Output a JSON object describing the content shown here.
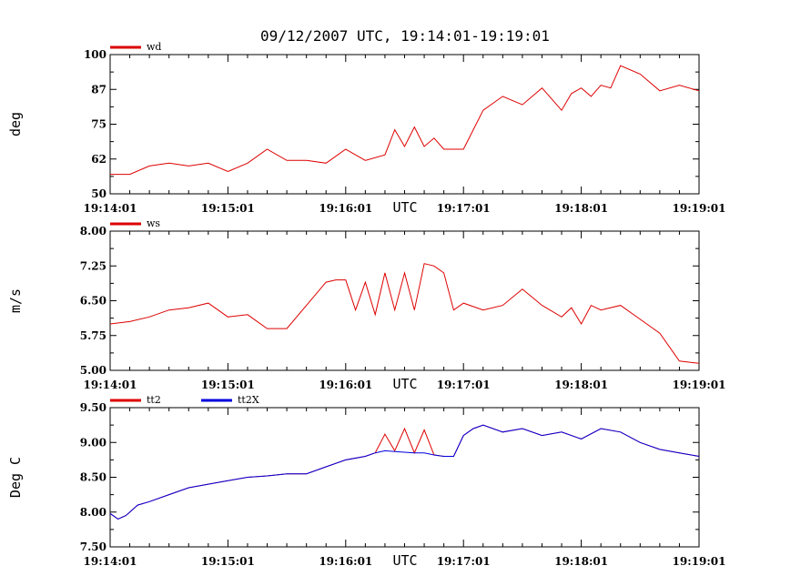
{
  "title": "09/12/2007  UTC, 19:14:01-19:19:01",
  "colors": {
    "red": "#dd0000",
    "blue": "#0000dd",
    "frame": "#000000"
  },
  "chart_data": [
    {
      "type": "line",
      "ylabel": "deg",
      "xlabel": "UTC",
      "ylim": [
        50,
        100
      ],
      "yticks": [
        "100",
        "87",
        "75",
        "62",
        "50"
      ],
      "ytick_values": [
        100,
        87.5,
        75,
        62.5,
        50
      ],
      "x_tick_labels": [
        "19:14:01",
        "19:15:01",
        "19:16:01",
        "19:17:01",
        "19:18:01",
        "19:19:01"
      ],
      "x": [
        0,
        10,
        20,
        30,
        40,
        50,
        60,
        70,
        80,
        90,
        100,
        110,
        120,
        125,
        130,
        140,
        145,
        150,
        155,
        160,
        165,
        170,
        180,
        190,
        200,
        210,
        220,
        230,
        235,
        240,
        245,
        250,
        255,
        260,
        270,
        280,
        290,
        300
      ],
      "series": [
        {
          "name": "wd",
          "color": "#dd0000",
          "values": [
            57,
            57,
            60,
            61,
            60,
            61,
            58,
            61,
            66,
            62,
            62,
            61,
            66,
            64,
            62,
            64,
            73,
            67,
            74,
            67,
            70,
            66,
            66,
            80,
            85,
            82,
            88,
            80,
            86,
            88,
            85,
            89,
            88,
            96,
            93,
            87,
            89,
            87
          ]
        }
      ]
    },
    {
      "type": "line",
      "ylabel": "m/s",
      "xlabel": "UTC",
      "ylim": [
        5.0,
        8.0
      ],
      "yticks": [
        "8.00",
        "7.25",
        "6.50",
        "5.75",
        "5.00"
      ],
      "ytick_values": [
        8.0,
        7.25,
        6.5,
        5.75,
        5.0
      ],
      "x_tick_labels": [
        "19:14:01",
        "19:15:01",
        "19:16:01",
        "19:17:01",
        "19:18:01",
        "19:19:01"
      ],
      "x": [
        0,
        10,
        20,
        30,
        40,
        50,
        60,
        70,
        80,
        90,
        100,
        110,
        115,
        120,
        125,
        130,
        135,
        140,
        145,
        150,
        155,
        160,
        165,
        170,
        175,
        180,
        190,
        200,
        210,
        220,
        230,
        235,
        240,
        245,
        250,
        260,
        270,
        280,
        290,
        300
      ],
      "series": [
        {
          "name": "ws",
          "color": "#dd0000",
          "values": [
            6.0,
            6.05,
            6.15,
            6.3,
            6.35,
            6.45,
            6.15,
            6.2,
            5.9,
            5.9,
            6.4,
            6.9,
            6.95,
            6.95,
            6.3,
            6.9,
            6.2,
            7.1,
            6.3,
            7.1,
            6.3,
            7.3,
            7.25,
            7.1,
            6.3,
            6.45,
            6.3,
            6.4,
            6.75,
            6.4,
            6.15,
            6.35,
            6.0,
            6.4,
            6.3,
            6.4,
            6.1,
            5.8,
            5.2,
            5.15
          ]
        }
      ]
    },
    {
      "type": "line",
      "ylabel": "Deg C",
      "xlabel": "UTC",
      "ylim": [
        7.5,
        9.5
      ],
      "yticks": [
        "9.50",
        "9.00",
        "8.50",
        "8.00",
        "7.50"
      ],
      "ytick_values": [
        9.5,
        9.0,
        8.5,
        8.0,
        7.5
      ],
      "x_tick_labels": [
        "19:14:01",
        "19:15:01",
        "19:16:01",
        "19:17:01",
        "19:18:01",
        "19:19:01"
      ],
      "x": [
        0,
        4,
        8,
        14,
        20,
        30,
        40,
        50,
        60,
        70,
        80,
        90,
        100,
        110,
        120,
        130,
        135,
        140,
        145,
        150,
        155,
        160,
        165,
        170,
        175,
        180,
        185,
        190,
        200,
        210,
        220,
        230,
        240,
        250,
        260,
        270,
        280,
        290,
        300
      ],
      "series": [
        {
          "name": "tt2",
          "color": "#dd0000",
          "values": [
            7.98,
            7.9,
            7.95,
            8.1,
            8.15,
            8.25,
            8.35,
            8.4,
            8.45,
            8.5,
            8.52,
            8.55,
            8.55,
            8.65,
            8.75,
            8.8,
            8.85,
            9.12,
            8.88,
            9.2,
            8.85,
            9.18,
            8.82,
            8.8,
            8.8,
            9.1,
            9.2,
            9.25,
            9.15,
            9.2,
            9.1,
            9.15,
            9.05,
            9.2,
            9.15,
            9.0,
            8.9,
            8.85,
            8.8
          ]
        },
        {
          "name": "tt2X",
          "color": "#0000dd",
          "values": [
            7.98,
            7.9,
            7.95,
            8.1,
            8.15,
            8.25,
            8.35,
            8.4,
            8.45,
            8.5,
            8.52,
            8.55,
            8.55,
            8.65,
            8.75,
            8.8,
            8.85,
            8.88,
            8.87,
            8.86,
            8.85,
            8.85,
            8.82,
            8.8,
            8.8,
            9.1,
            9.2,
            9.25,
            9.15,
            9.2,
            9.1,
            9.15,
            9.05,
            9.2,
            9.15,
            9.0,
            8.9,
            8.85,
            8.8
          ]
        }
      ]
    }
  ]
}
